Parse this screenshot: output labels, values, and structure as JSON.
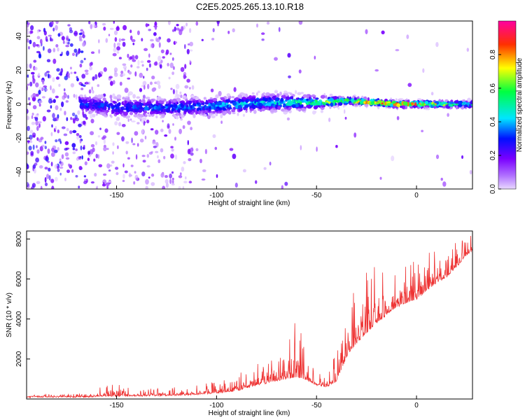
{
  "figure": {
    "title": "C2E5.2025.265.13.10.R18"
  },
  "chart_data": [
    {
      "type": "heatmap",
      "title": "C2E5.2025.265.13.10.R18",
      "xlabel": "Height of straight line (km)",
      "ylabel": "Frequency (Hz)",
      "xlim": [
        -195,
        28
      ],
      "ylim": [
        -50,
        49
      ],
      "x_ticks": [
        "-150",
        "-100",
        "-50",
        "0"
      ],
      "x_tick_values": [
        -150,
        -100,
        -50,
        0
      ],
      "y_ticks": [
        "40",
        "20",
        "0",
        "-20",
        "-40"
      ],
      "y_tick_values": [
        40,
        20,
        0,
        -20,
        -40
      ],
      "colorbar": {
        "label": "Normalized spectral amplitude",
        "range": [
          0,
          1
        ],
        "ticks": [
          "0.0",
          "0.2",
          "0.4",
          "0.6",
          "0.8"
        ],
        "tick_values": [
          0,
          0.2,
          0.4,
          0.6,
          0.8
        ],
        "colors": [
          "#e8d8ff",
          "#7a00ff",
          "#0010ff",
          "#00e5ff",
          "#00ff40",
          "#ffff00",
          "#ff3000",
          "#ff00a0"
        ]
      },
      "signal_track": [
        {
          "x": -165,
          "freq": 0,
          "spread": 5,
          "amp": 0.3
        },
        {
          "x": -150,
          "freq": -2,
          "spread": 6,
          "amp": 0.3
        },
        {
          "x": -125,
          "freq": -2,
          "spread": 5,
          "amp": 0.35
        },
        {
          "x": -100,
          "freq": -1,
          "spread": 5,
          "amp": 0.4
        },
        {
          "x": -75,
          "freq": 1,
          "spread": 5,
          "amp": 0.45
        },
        {
          "x": -50,
          "freq": 1,
          "spread": 4,
          "amp": 0.55
        },
        {
          "x": -35,
          "freq": 2,
          "spread": 2,
          "amp": 0.75
        },
        {
          "x": -20,
          "freq": 1,
          "spread": 2,
          "amp": 0.85
        },
        {
          "x": -10,
          "freq": 0,
          "spread": 2,
          "amp": 0.9
        },
        {
          "x": 28,
          "freq": 0,
          "spread": 2,
          "amp": 0.5
        }
      ]
    },
    {
      "type": "line",
      "xlabel": "Height of straight line (km)",
      "ylabel": "SNR (10 * v/v)",
      "xlim": [
        -195,
        28
      ],
      "ylim": [
        0,
        8400
      ],
      "x_ticks": [
        "-150",
        "-100",
        "-50",
        "0"
      ],
      "x_tick_values": [
        -150,
        -100,
        -50,
        0
      ],
      "y_ticks": [
        "8000",
        "6000",
        "4000",
        "2000"
      ],
      "y_tick_values": [
        8000,
        6000,
        4000,
        2000
      ],
      "series_color": "#ee3333",
      "envelope": {
        "x": [
          -195,
          -165,
          -155,
          -150,
          -140,
          -120,
          -100,
          -90,
          -80,
          -70,
          -65,
          -60,
          -55,
          -50,
          -45,
          -40,
          -35,
          -30,
          -25,
          -20,
          -15,
          -10,
          -5,
          0,
          5,
          10,
          15,
          20,
          25,
          28
        ],
        "base": [
          100,
          100,
          150,
          150,
          150,
          180,
          300,
          400,
          700,
          900,
          1000,
          1100,
          950,
          700,
          600,
          900,
          2100,
          2800,
          3300,
          3800,
          4200,
          4600,
          4800,
          5000,
          5400,
          5800,
          6100,
          6600,
          7200,
          7400
        ],
        "peak": [
          250,
          300,
          700,
          1000,
          500,
          600,
          900,
          1200,
          1900,
          2200,
          2800,
          4200,
          2500,
          1300,
          1100,
          2500,
          4400,
          5800,
          6500,
          6800,
          6600,
          6900,
          6800,
          7100,
          7400,
          7800,
          7700,
          8100,
          8000,
          8200
        ]
      }
    }
  ]
}
